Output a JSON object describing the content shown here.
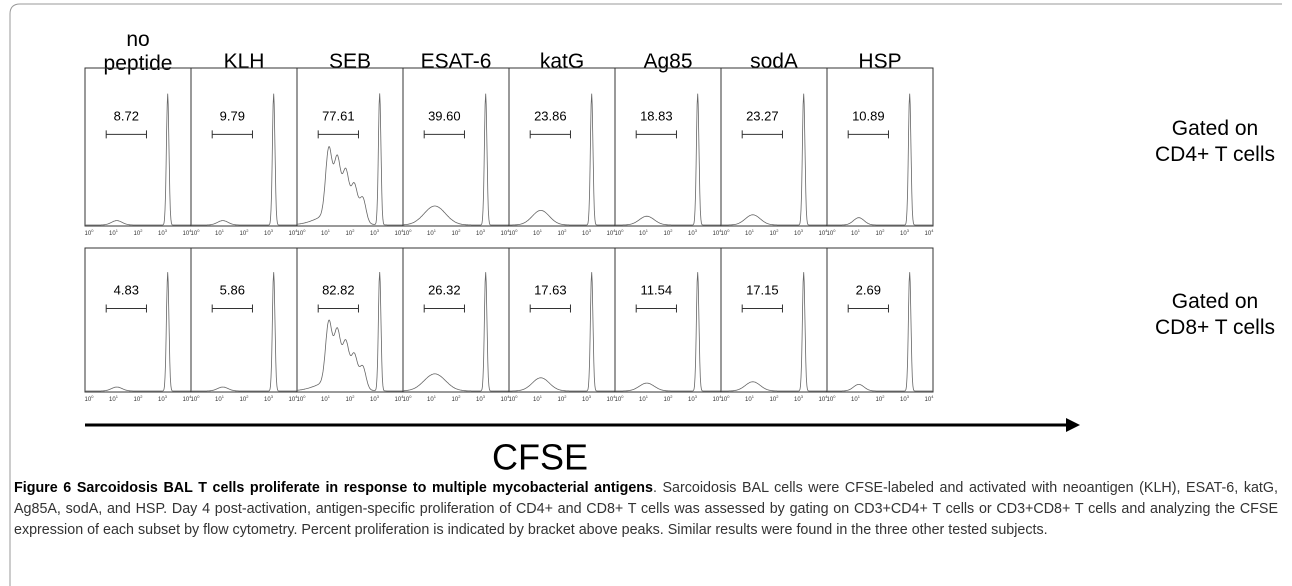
{
  "figure": {
    "columns": [
      "no\npeptide",
      "KLH",
      "SEB",
      "ESAT-6",
      "katG",
      "Ag85",
      "sodA",
      "HSP"
    ],
    "rows": [
      {
        "label": "Gated on\nCD4+ T cells",
        "percentages": [
          "8.72",
          "9.79",
          "77.61",
          "39.60",
          "23.86",
          "18.83",
          "23.27",
          "10.89"
        ]
      },
      {
        "label": "Gated on\nCD8+ T cells",
        "percentages": [
          "4.83",
          "5.86",
          "82.82",
          "26.32",
          "17.63",
          "11.54",
          "17.15",
          "2.69"
        ]
      }
    ],
    "axis_ticks": [
      {
        "base": "10",
        "exp": "0"
      },
      {
        "base": "10",
        "exp": "1"
      },
      {
        "base": "10",
        "exp": "2"
      },
      {
        "base": "10",
        "exp": "3"
      },
      {
        "base": "10",
        "exp": "4"
      }
    ],
    "axis_label": "CFSE"
  },
  "caption": {
    "title": "Figure 6 Sarcoidosis BAL T cells proliferate in response to multiple mycobacterial antigens",
    "text": ". Sarcoidosis BAL cells were CFSE-labeled and activated with neoantigen (KLH), ESAT-6, katG, Ag85A, sodA, and HSP. Day 4 post-activation, antigen-specific proliferation of CD4+ and CD8+ T cells was assessed by gating on CD3+CD4+ T cells or CD3+CD8+ T cells and analyzing the CFSE expression of each subset by flow cytometry. Percent proliferation is indicated by bracket above peaks. Similar results were found in the three other tested subjects."
  }
}
